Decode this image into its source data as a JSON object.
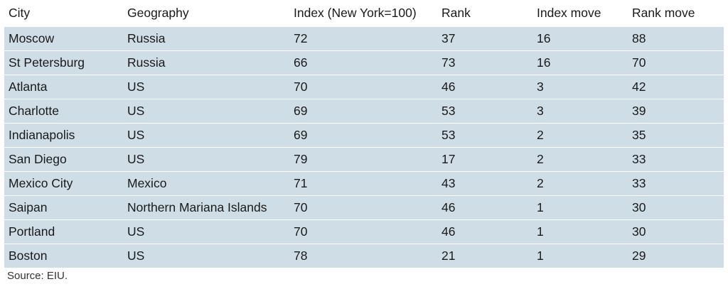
{
  "table": {
    "headers": [
      "City",
      "Geography",
      "Index (New York=100)",
      "Rank",
      "Index move",
      "Rank move"
    ],
    "rows": [
      [
        "Moscow",
        "Russia",
        "72",
        "37",
        "16",
        "88"
      ],
      [
        "St Petersburg",
        "Russia",
        "66",
        "73",
        "16",
        "70"
      ],
      [
        "Atlanta",
        "US",
        "70",
        "46",
        "3",
        "42"
      ],
      [
        "Charlotte",
        "US",
        "69",
        "53",
        "3",
        "39"
      ],
      [
        "Indianapolis",
        "US",
        "69",
        "53",
        "2",
        "35"
      ],
      [
        "San Diego",
        "US",
        "79",
        "17",
        "2",
        "33"
      ],
      [
        "Mexico City",
        "Mexico",
        "71",
        "43",
        "2",
        "33"
      ],
      [
        "Saipan",
        "Northern Mariana Islands",
        "70",
        "46",
        "1",
        "30"
      ],
      [
        "Portland",
        "US",
        "70",
        "46",
        "1",
        "30"
      ],
      [
        "Boston",
        "US",
        "78",
        "21",
        "1",
        "29"
      ]
    ]
  },
  "source": "Source: EIU.",
  "colors": {
    "row_fill": "#cfdde6",
    "separator": "#ffffff"
  }
}
